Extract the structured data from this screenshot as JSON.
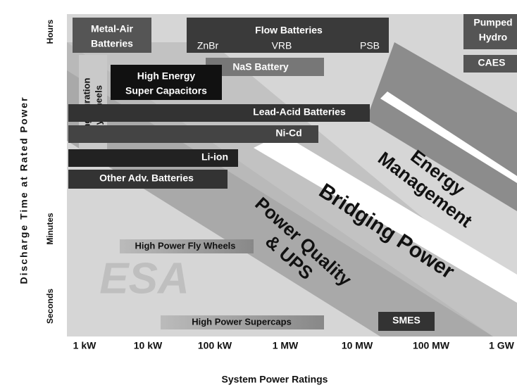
{
  "axes": {
    "y_title": "Discharge Time at Rated Power",
    "x_title": "System Power Ratings",
    "y_labels": [
      "Hours",
      "Minutes",
      "Seconds"
    ],
    "x_labels": [
      "1 kW",
      "10 kW",
      "100 kW",
      "1 MW",
      "10 MW",
      "100 MW",
      "1 GW"
    ]
  },
  "regions": {
    "power_quality": [
      "Power Quality",
      "& UPS"
    ],
    "bridging": "Bridging Power",
    "energy_management": [
      "Energy",
      "Management"
    ]
  },
  "logo": "ESA",
  "technologies": {
    "metal_air": [
      "Metal-Air",
      "Batteries"
    ],
    "flow": {
      "title": "Flow Batteries",
      "types": [
        "ZnBr",
        "VRB",
        "PSB"
      ]
    },
    "pumped_hydro": [
      "Pumped",
      "Hydro"
    ],
    "caes": "CAES",
    "nas": "NaS Battery",
    "flywheels_long": [
      "Long Duration",
      "Fly Wheels"
    ],
    "supercaps_high_energy": [
      "High Energy",
      "Super Capacitors"
    ],
    "lead_acid": "Lead-Acid Batteries",
    "nicd": "Ni-Cd",
    "li_ion": "Li-ion",
    "other": "Other Adv. Batteries",
    "flywheels_high_power": "High Power Fly Wheels",
    "supercaps_high_power": "High Power Supercaps",
    "smes": "SMES"
  }
}
